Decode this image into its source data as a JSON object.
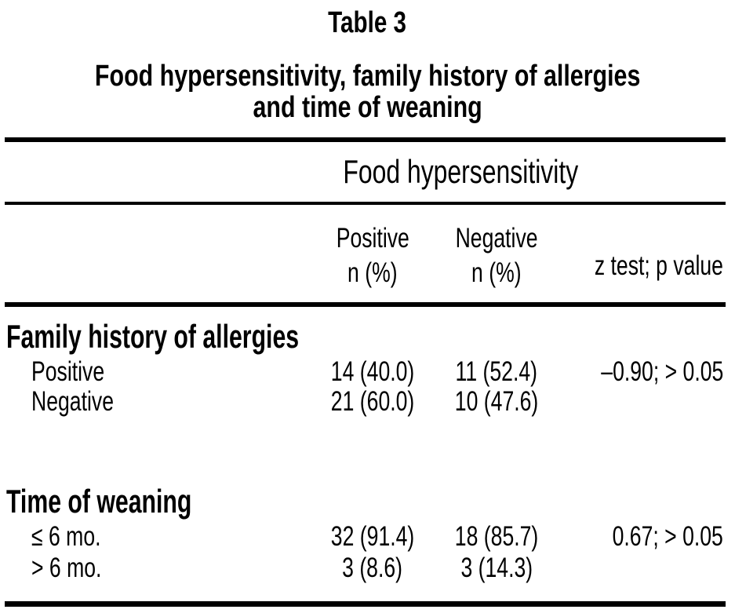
{
  "colors": {
    "background": "#ffffff",
    "text": "#000000",
    "rule": "#000000"
  },
  "table_label": "Table 3",
  "title": {
    "line1": "Food hypersensitivity, family history of allergies",
    "line2": "and time of weaning"
  },
  "columns": {
    "spanner": "Food hypersensitivity",
    "positive_line1": "Positive",
    "positive_line2": "n (%)",
    "negative_line1": "Negative",
    "negative_line2": "n (%)",
    "ztest": "z test; p value"
  },
  "sections": [
    {
      "title": "Family history of allergies",
      "rows": [
        {
          "label": "Positive",
          "positive": "14 (40.0)",
          "negative": "11 (52.4)",
          "ztest": "–0.90; > 0.05"
        },
        {
          "label": "Negative",
          "positive": "21 (60.0)",
          "negative": "10 (47.6)",
          "ztest": ""
        }
      ]
    },
    {
      "title": "Time of weaning",
      "rows": [
        {
          "label": "≤ 6 mo.",
          "positive": "32 (91.4)",
          "negative": "18 (85.7)",
          "ztest": "0.67; > 0.05"
        },
        {
          "label": "> 6 mo.",
          "positive": "3 (8.6)",
          "negative": "3 (14.3)",
          "ztest": ""
        }
      ]
    }
  ]
}
